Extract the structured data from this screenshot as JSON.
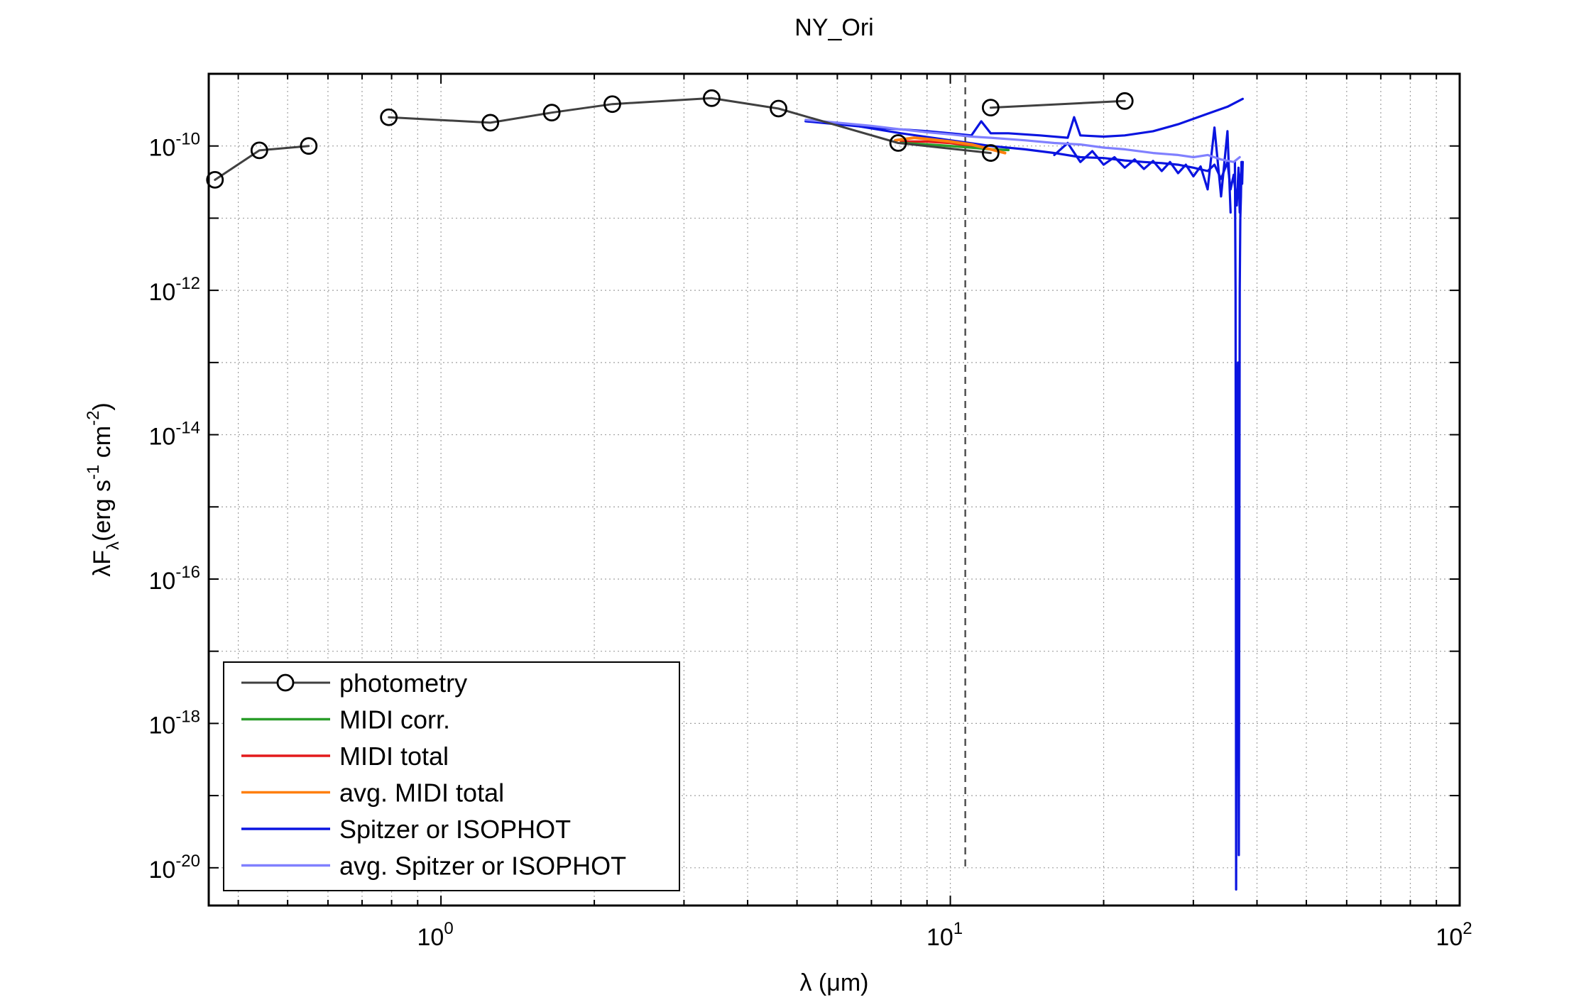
{
  "chart_data": {
    "type": "line",
    "title": "NY_Ori",
    "xlabel": "λ (μm)",
    "ylabel": {
      "prefix": "λF",
      "sub": "λ",
      "units_open": "(erg s",
      "units_s_exp": "-1",
      "units_cm": " cm",
      "units_cm_exp": "-2",
      "units_close": ")"
    },
    "xscale": "log",
    "yscale": "log",
    "xlim": [
      0.35,
      100
    ],
    "ylim": [
      3e-21,
      1e-09
    ],
    "grid": true,
    "x_ticks": [
      {
        "value": 1,
        "base": "10",
        "exp": "0"
      },
      {
        "value": 10,
        "base": "10",
        "exp": "1"
      },
      {
        "value": 100,
        "base": "10",
        "exp": "2"
      }
    ],
    "y_ticks": [
      {
        "value": 1e-20,
        "base": "10",
        "exp": "-20"
      },
      {
        "value": 1e-18,
        "base": "10",
        "exp": "-18"
      },
      {
        "value": 1e-16,
        "base": "10",
        "exp": "-16"
      },
      {
        "value": 1e-14,
        "base": "10",
        "exp": "-14"
      },
      {
        "value": 1e-12,
        "base": "10",
        "exp": "-12"
      },
      {
        "value": 1e-10,
        "base": "10",
        "exp": "-10"
      }
    ],
    "vline": {
      "x": 10.7,
      "style": "dashed"
    },
    "legend_position": "bottom-left",
    "series": [
      {
        "name": "photometry",
        "color": "#404040",
        "marker": "circle",
        "segments": [
          [
            [
              0.36,
              3.4e-11
            ],
            [
              0.44,
              8.7e-11
            ],
            [
              0.55,
              1e-10
            ]
          ],
          [
            [
              0.79,
              2.5e-10
            ],
            [
              1.25,
              2.1e-10
            ],
            [
              1.65,
              2.9e-10
            ],
            [
              2.17,
              3.8e-10
            ],
            [
              3.4,
              4.6e-10
            ],
            [
              4.6,
              3.3e-10
            ],
            [
              7.9,
              1.1e-10
            ],
            [
              12.0,
              8e-11
            ]
          ],
          [
            [
              12.0,
              3.4e-10
            ],
            [
              22.0,
              4.2e-10
            ]
          ]
        ]
      },
      {
        "name": "MIDI corr.",
        "color": "#2a9d2a",
        "points": [
          [
            8.0,
            1.1e-10
          ],
          [
            9.0,
            1.05e-10
          ],
          [
            10.0,
            1e-10
          ],
          [
            11.0,
            9.5e-11
          ],
          [
            12.0,
            9e-11
          ],
          [
            13.0,
            8.8e-11
          ]
        ]
      },
      {
        "name": "MIDI total",
        "color": "#e31a1c",
        "points": [
          [
            8.0,
            1.15e-10
          ],
          [
            9.0,
            1.15e-10
          ],
          [
            10.0,
            1.1e-10
          ],
          [
            11.0,
            1e-10
          ],
          [
            12.0,
            9e-11
          ],
          [
            12.5,
            8.5e-11
          ]
        ]
      },
      {
        "name": "avg. MIDI total",
        "color": "#ff7f0e",
        "points": [
          [
            7.8,
            1.2e-10
          ],
          [
            8.5,
            1.3e-10
          ],
          [
            9.0,
            1.25e-10
          ],
          [
            9.5,
            1.2e-10
          ],
          [
            10.0,
            1.15e-10
          ],
          [
            11.0,
            1.05e-10
          ],
          [
            12.0,
            9e-11
          ],
          [
            12.8,
            8e-11
          ]
        ]
      },
      {
        "name": "Spitzer or ISOPHOT",
        "color": "#0a14e0",
        "traces": [
          [
            [
              5.2,
              2.2e-10
            ],
            [
              6.0,
              2e-10
            ],
            [
              7.0,
              1.8e-10
            ],
            [
              8.0,
              1.7e-10
            ],
            [
              9.0,
              1.6e-10
            ],
            [
              10.0,
              1.5e-10
            ],
            [
              11.0,
              1.4e-10
            ],
            [
              11.5,
              2.2e-10
            ],
            [
              12.0,
              1.5e-10
            ],
            [
              13.0,
              1.5e-10
            ],
            [
              15.0,
              1.4e-10
            ],
            [
              17.0,
              1.3e-10
            ],
            [
              17.5,
              2.5e-10
            ],
            [
              18.0,
              1.4e-10
            ],
            [
              20.0,
              1.35e-10
            ],
            [
              22.0,
              1.4e-10
            ],
            [
              25.0,
              1.6e-10
            ],
            [
              28.0,
              2e-10
            ],
            [
              32.0,
              2.8e-10
            ],
            [
              35.0,
              3.5e-10
            ],
            [
              37.5,
              4.5e-10
            ]
          ],
          [
            [
              5.2,
              2.2e-10
            ],
            [
              6.0,
              2.1e-10
            ],
            [
              8.0,
              1.5e-10
            ],
            [
              10.0,
              1.2e-10
            ],
            [
              12.0,
              1e-10
            ],
            [
              14.0,
              9e-11
            ],
            [
              16.0,
              8e-11
            ],
            [
              18.0,
              7e-11
            ],
            [
              20.0,
              6.8e-11
            ],
            [
              22.0,
              6.3e-11
            ],
            [
              24.0,
              6e-11
            ],
            [
              26.0,
              5.8e-11
            ],
            [
              28.0,
              5.5e-11
            ],
            [
              30.0,
              5e-11
            ],
            [
              32.0,
              4.5e-11
            ],
            [
              33.0,
              5.5e-11
            ],
            [
              34.0,
              3.5e-11
            ],
            [
              35.0,
              6e-11
            ],
            [
              35.5,
              2.5e-11
            ],
            [
              36.0,
              4e-11
            ],
            [
              36.5,
              1.5e-11
            ],
            [
              36.8,
              5e-11
            ],
            [
              37.0,
              1.2e-11
            ],
            [
              37.2,
              4e-11
            ],
            [
              37.5,
              6e-11
            ]
          ],
          [
            [
              16.0,
              7.5e-11
            ],
            [
              17.0,
              1.1e-10
            ],
            [
              18.0,
              6e-11
            ],
            [
              19.0,
              8.5e-11
            ],
            [
              20.0,
              5.5e-11
            ],
            [
              21.0,
              7e-11
            ],
            [
              22.0,
              5e-11
            ],
            [
              23.0,
              6.5e-11
            ],
            [
              24.0,
              4.8e-11
            ],
            [
              25.0,
              6.2e-11
            ],
            [
              26.0,
              4.5e-11
            ],
            [
              27.0,
              6e-11
            ],
            [
              28.0,
              4.2e-11
            ],
            [
              29.0,
              5.5e-11
            ],
            [
              30.0,
              3.8e-11
            ],
            [
              31.0,
              5.2e-11
            ],
            [
              32.0,
              2.5e-11
            ],
            [
              33.0,
              1.8e-10
            ],
            [
              34.0,
              2e-11
            ],
            [
              35.0,
              1.6e-10
            ],
            [
              35.5,
              1.2e-11
            ]
          ],
          [
            [
              36.2,
              6e-11
            ],
            [
              36.3,
              1e-12
            ],
            [
              36.35,
              1e-15
            ],
            [
              36.4,
              5e-21
            ],
            [
              36.45,
              1e-18
            ],
            [
              36.5,
              1e-16
            ],
            [
              36.6,
              1e-14
            ],
            [
              36.7,
              1e-13
            ],
            [
              36.75,
              1e-15
            ],
            [
              36.8,
              1e-18
            ],
            [
              36.85,
              1.5e-20
            ],
            [
              36.9,
              1e-17
            ],
            [
              37.0,
              1e-12
            ],
            [
              37.1,
              1e-11
            ],
            [
              37.2,
              2e-11
            ],
            [
              37.3,
              6e-11
            ]
          ],
          [
            [
              37.3,
              6e-11
            ],
            [
              37.4,
              3e-11
            ],
            [
              37.5,
              6e-11
            ]
          ]
        ]
      },
      {
        "name": "avg. Spitzer or ISOPHOT",
        "color": "#8080ff",
        "points": [
          [
            5.2,
            2.3e-10
          ],
          [
            6.0,
            2.1e-10
          ],
          [
            7.0,
            1.9e-10
          ],
          [
            8.0,
            1.7e-10
          ],
          [
            9.0,
            1.55e-10
          ],
          [
            10.0,
            1.45e-10
          ],
          [
            11.0,
            1.35e-10
          ],
          [
            12.0,
            1.3e-10
          ],
          [
            14.0,
            1.2e-10
          ],
          [
            16.0,
            1.1e-10
          ],
          [
            18.0,
            1.05e-10
          ],
          [
            20.0,
            9.5e-11
          ],
          [
            22.0,
            9e-11
          ],
          [
            25.0,
            8e-11
          ],
          [
            28.0,
            7.5e-11
          ],
          [
            30.0,
            7e-11
          ],
          [
            32.0,
            7.5e-11
          ],
          [
            34.0,
            6.5e-11
          ],
          [
            36.0,
            6e-11
          ],
          [
            37.0,
            7e-11
          ]
        ]
      }
    ]
  }
}
